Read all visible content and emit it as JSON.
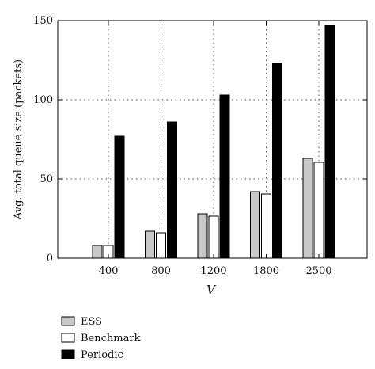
{
  "chart_data": {
    "type": "bar",
    "xlabel": "V",
    "ylabel": "Avg. total queue size (packets)",
    "categories": [
      "400",
      "800",
      "1200",
      "1800",
      "2500"
    ],
    "ylim": [
      0,
      150
    ],
    "yticks": [
      0,
      50,
      100,
      150
    ],
    "grid": true,
    "legend_position": "bottom-left",
    "series": [
      {
        "name": "ESS",
        "color": "#c8c8c8",
        "values": [
          8,
          17,
          28,
          42,
          63
        ]
      },
      {
        "name": "Benchmark",
        "color": "#ffffff",
        "values": [
          8,
          16,
          26.5,
          40.5,
          60.5
        ]
      },
      {
        "name": "Periodic",
        "color": "#000000",
        "values": [
          77,
          86,
          103,
          123,
          147
        ]
      }
    ]
  }
}
